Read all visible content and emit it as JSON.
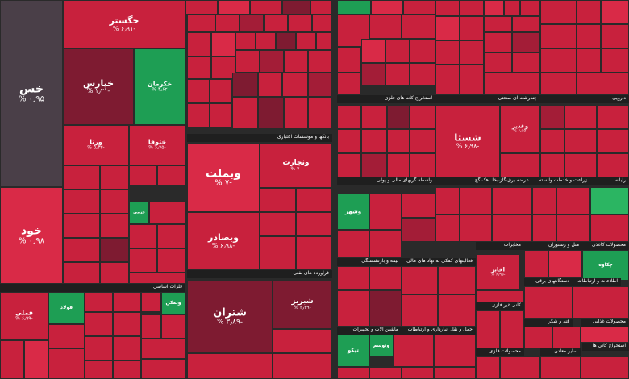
{
  "colors": {
    "dark": "#7e1b31",
    "red": "#c8213d",
    "bright": "#d92a47",
    "mid": "#a31d37",
    "green": "#1e9e54",
    "lgreen": "#2bb562",
    "gray": "#4a3f48",
    "deep": "#6b1a2c"
  },
  "chart_data": {
    "type": "treemap",
    "sectors": [
      {
        "name": "فلزات اساسی"
      },
      {
        "name": "فراورده های نفتی"
      },
      {
        "name": "بانکها و موسسات اعتباری"
      },
      {
        "name": "استخراج کانه های فلزی"
      },
      {
        "name": "چندرشته ای صنعتی"
      },
      {
        "name": "دارویی"
      },
      {
        "name": "واسطه گریهای مالی و پولی"
      },
      {
        "name": "سیمان آهک گچ"
      },
      {
        "name": "عرضه برق،گاز،بخاروآب"
      },
      {
        "name": "زراعت و خدمات وابسته"
      },
      {
        "name": "رایانه"
      },
      {
        "name": "محصولات کاغذی"
      },
      {
        "name": "هتل و رستوران"
      },
      {
        "name": "مخابرات"
      },
      {
        "name": "بیمه و بازنشستگی"
      },
      {
        "name": "فعالیتهای کمکی به نهاد های مالی"
      },
      {
        "name": "ماشین آلات و تجهیزات"
      },
      {
        "name": "حمل و نقل انبارداری و ارتباطات"
      },
      {
        "name": "کانی غیر فلزی"
      },
      {
        "name": "دستگاههای برقی"
      },
      {
        "name": "اطلاعات و ارتباطات"
      },
      {
        "name": "قند و شکر"
      },
      {
        "name": "محصولات غذایی"
      },
      {
        "name": "استخراج کانی ها"
      },
      {
        "name": "محصولات فلزی"
      },
      {
        "name": "سایر معادن"
      }
    ],
    "tiles": [
      {
        "name": "خس",
        "change": "۰٫۹۵ %",
        "color": "gray"
      },
      {
        "name": "خود",
        "change": "۰٫۹۸ %",
        "color": "bright"
      },
      {
        "name": "خگستر",
        "change": "-۶٫۹۱ %",
        "color": "red"
      },
      {
        "name": "خپارس",
        "change": "-۱٫۲۱ %",
        "color": "dark"
      },
      {
        "name": "خکرمان",
        "change": "۴٫۶۲ %",
        "color": "green"
      },
      {
        "name": "ورنا",
        "change": "-۵٫۳۳ %",
        "color": "red"
      },
      {
        "name": "ختوقا",
        "change": "-۶٫۷۵ %",
        "color": "red"
      },
      {
        "name": "وبملت",
        "change": "-۷ %",
        "color": "bright"
      },
      {
        "name": "ونجارت",
        "change": "-۷ %",
        "color": "red"
      },
      {
        "name": "وبصادر",
        "change": "-۶٫۹۸ %",
        "color": "red"
      },
      {
        "name": "شتران",
        "change": "-۳٫۸۹ %",
        "color": "dark"
      },
      {
        "name": "شبریز",
        "change": "-۳٫۳۹ %",
        "color": "dark"
      },
      {
        "name": "شستا",
        "change": "-۶٫۹۸ %",
        "color": "red"
      },
      {
        "name": "وغدیر",
        "change": "-۶٫۶۵ %",
        "color": "red"
      },
      {
        "name": "اخابر",
        "change": "-۶٫۹۵ %",
        "color": "red"
      },
      {
        "name": "فملی",
        "change": "-۶٫۹۹ %",
        "color": "red"
      },
      {
        "name": "فولاد",
        "change": "",
        "color": "green"
      },
      {
        "name": "وبمکن",
        "change": "",
        "color": "green"
      },
      {
        "name": "چکاوه",
        "change": "",
        "color": "green"
      },
      {
        "name": "تیکو",
        "change": "",
        "color": "green"
      },
      {
        "name": "وشهر",
        "change": "",
        "color": "green"
      },
      {
        "name": "وتوسم",
        "change": "",
        "color": "green"
      },
      {
        "name": "خزمی",
        "change": "",
        "color": "green"
      }
    ]
  }
}
